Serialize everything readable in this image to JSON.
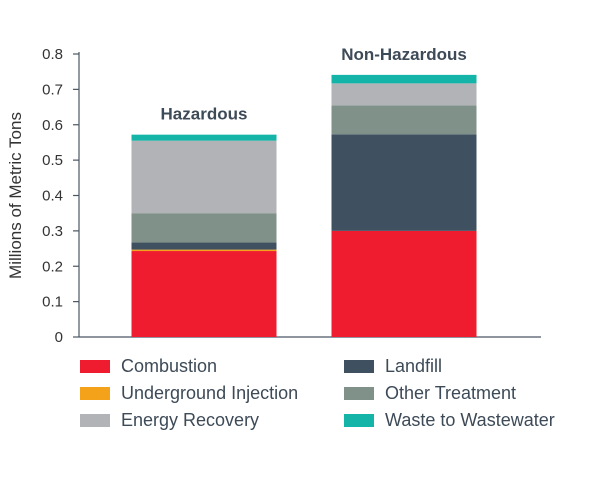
{
  "chart_data": {
    "type": "bar",
    "stacked": true,
    "categories": [
      "Hazardous",
      "Non-Hazardous"
    ],
    "ylabel": "Millions of Metric Tons",
    "xlabel": "",
    "ylim": [
      0,
      0.8
    ],
    "yticks": [
      "0",
      "0.1",
      "0.2",
      "0.3",
      "0.4",
      "0.5",
      "0.6",
      "0.7",
      "0.8"
    ],
    "grid": false,
    "legend_position": "bottom",
    "series": [
      {
        "name": "Combustion",
        "color": "#ee1c2e",
        "values": [
          0.243,
          0.3
        ]
      },
      {
        "name": "Underground Injection",
        "color": "#f5a21b",
        "values": [
          0.004,
          0.0
        ]
      },
      {
        "name": "Landfill",
        "color": "#3f5060",
        "values": [
          0.02,
          0.273
        ]
      },
      {
        "name": "Other Treatment",
        "color": "#7f9188",
        "values": [
          0.083,
          0.082
        ]
      },
      {
        "name": "Energy Recovery",
        "color": "#b1b3b6",
        "values": [
          0.205,
          0.062
        ]
      },
      {
        "name": "Waste to Wastewater",
        "color": "#14b5a8",
        "values": [
          0.017,
          0.024
        ]
      }
    ]
  },
  "legend": [
    {
      "label": "Combustion",
      "color": "#ee1c2e"
    },
    {
      "label": "Landfill",
      "color": "#3f5060"
    },
    {
      "label": "Underground Injection",
      "color": "#f5a21b"
    },
    {
      "label": "Other Treatment",
      "color": "#7f9188"
    },
    {
      "label": "Energy Recovery",
      "color": "#b1b3b6"
    },
    {
      "label": "Waste to Wastewater",
      "color": "#14b5a8"
    }
  ]
}
